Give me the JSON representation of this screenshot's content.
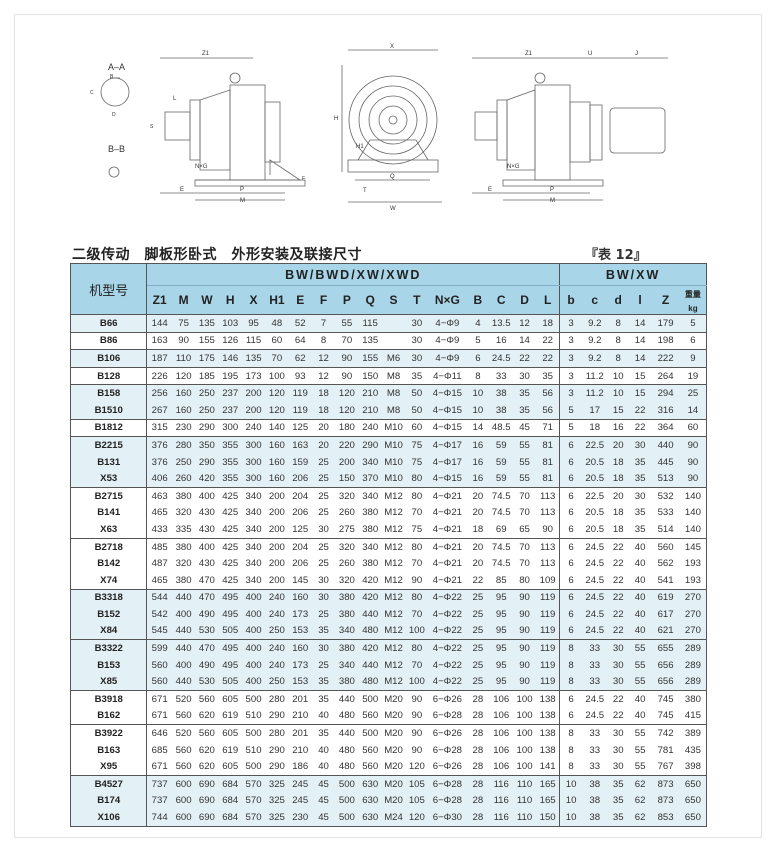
{
  "drawing_labels": {
    "aa": "A–A",
    "bb": "B–B",
    "z1": "Z1",
    "x": "X",
    "u": "U",
    "j": "J",
    "l": "L",
    "h": "H",
    "h1": "H1",
    "e": "E",
    "p": "P",
    "m": "M",
    "q": "Q",
    "t": "T",
    "w": "W",
    "nxg": "N×G",
    "f": "F",
    "s": "S",
    "c": "C",
    "d": "D",
    "b": "B"
  },
  "title": "二级传动　脚板形卧式　外形安装及联接尺寸",
  "table_no": "『表 12』",
  "table": {
    "model_header": "机型号",
    "group1": "BW/BWD/XW/XWD",
    "group2": "BW/XW",
    "columns": [
      "Z1",
      "M",
      "W",
      "H",
      "X",
      "H1",
      "E",
      "F",
      "P",
      "Q",
      "S",
      "T",
      "N×G",
      "B",
      "C",
      "D",
      "L",
      "b",
      "c",
      "d",
      "l",
      "Z"
    ],
    "weight_header": [
      "重量",
      "kg"
    ],
    "groups": [
      {
        "shade": true,
        "rows": [
          [
            "B66",
            "144",
            "75",
            "135",
            "103",
            "95",
            "48",
            "52",
            "7",
            "55",
            "115",
            "",
            "30",
            "4−Φ9",
            "4",
            "13.5",
            "12",
            "18",
            "3",
            "9.2",
            "8",
            "14",
            "179",
            "5"
          ]
        ]
      },
      {
        "shade": false,
        "rows": [
          [
            "B86",
            "163",
            "90",
            "155",
            "126",
            "115",
            "60",
            "64",
            "8",
            "70",
            "135",
            "",
            "30",
            "4−Φ9",
            "5",
            "16",
            "14",
            "22",
            "3",
            "9.2",
            "8",
            "14",
            "198",
            "6"
          ]
        ]
      },
      {
        "shade": true,
        "rows": [
          [
            "B106",
            "187",
            "110",
            "175",
            "146",
            "135",
            "70",
            "62",
            "12",
            "90",
            "155",
            "M6",
            "30",
            "4−Φ9",
            "6",
            "24.5",
            "22",
            "22",
            "3",
            "9.2",
            "8",
            "14",
            "222",
            "9"
          ]
        ]
      },
      {
        "shade": false,
        "rows": [
          [
            "B128",
            "226",
            "120",
            "185",
            "195",
            "173",
            "100",
            "93",
            "12",
            "90",
            "150",
            "M8",
            "35",
            "4−Φ11",
            "8",
            "33",
            "30",
            "35",
            "3",
            "11.2",
            "10",
            "15",
            "264",
            "19"
          ]
        ]
      },
      {
        "shade": true,
        "rows": [
          [
            "B158",
            "256",
            "160",
            "250",
            "237",
            "200",
            "120",
            "119",
            "18",
            "120",
            "210",
            "M8",
            "50",
            "4−Φ15",
            "10",
            "38",
            "35",
            "56",
            "3",
            "11.2",
            "10",
            "15",
            "294",
            "25"
          ],
          [
            "B1510",
            "267",
            "160",
            "250",
            "237",
            "200",
            "120",
            "119",
            "18",
            "120",
            "210",
            "M8",
            "50",
            "4−Φ15",
            "10",
            "38",
            "35",
            "56",
            "5",
            "17",
            "15",
            "22",
            "316",
            "14"
          ]
        ]
      },
      {
        "shade": false,
        "rows": [
          [
            "B1812",
            "315",
            "230",
            "290",
            "300",
            "240",
            "140",
            "125",
            "20",
            "180",
            "240",
            "M10",
            "60",
            "4−Φ15",
            "14",
            "48.5",
            "45",
            "71",
            "5",
            "18",
            "16",
            "22",
            "364",
            "60"
          ]
        ]
      },
      {
        "shade": true,
        "rows": [
          [
            "B2215",
            "376",
            "280",
            "350",
            "355",
            "300",
            "160",
            "163",
            "20",
            "220",
            "290",
            "M10",
            "75",
            "4−Φ17",
            "16",
            "59",
            "55",
            "81",
            "6",
            "22.5",
            "20",
            "30",
            "440",
            "90"
          ],
          [
            "B131",
            "376",
            "250",
            "290",
            "355",
            "300",
            "160",
            "159",
            "25",
            "200",
            "340",
            "M10",
            "75",
            "4−Φ17",
            "16",
            "59",
            "55",
            "81",
            "6",
            "20.5",
            "18",
            "35",
            "445",
            "90"
          ],
          [
            "X53",
            "406",
            "260",
            "420",
            "355",
            "300",
            "160",
            "206",
            "25",
            "150",
            "370",
            "M10",
            "80",
            "4−Φ15",
            "16",
            "59",
            "55",
            "81",
            "6",
            "20.5",
            "18",
            "35",
            "513",
            "90"
          ]
        ]
      },
      {
        "shade": false,
        "rows": [
          [
            "B2715",
            "463",
            "380",
            "400",
            "425",
            "340",
            "200",
            "204",
            "25",
            "320",
            "340",
            "M12",
            "80",
            "4−Φ21",
            "20",
            "74.5",
            "70",
            "113",
            "6",
            "22.5",
            "20",
            "30",
            "532",
            "140"
          ],
          [
            "B141",
            "465",
            "320",
            "430",
            "425",
            "340",
            "200",
            "206",
            "25",
            "260",
            "380",
            "M12",
            "70",
            "4−Φ21",
            "20",
            "74.5",
            "70",
            "113",
            "6",
            "20.5",
            "18",
            "35",
            "533",
            "140"
          ],
          [
            "X63",
            "433",
            "335",
            "430",
            "425",
            "340",
            "200",
            "125",
            "30",
            "275",
            "380",
            "M12",
            "75",
            "4−Φ21",
            "18",
            "69",
            "65",
            "90",
            "6",
            "20.5",
            "18",
            "35",
            "514",
            "140"
          ]
        ]
      },
      {
        "shade": false,
        "rows": [
          [
            "B2718",
            "485",
            "380",
            "400",
            "425",
            "340",
            "200",
            "204",
            "25",
            "320",
            "340",
            "M12",
            "80",
            "4−Φ21",
            "20",
            "74.5",
            "70",
            "113",
            "6",
            "24.5",
            "22",
            "40",
            "560",
            "145"
          ],
          [
            "B142",
            "487",
            "320",
            "430",
            "425",
            "340",
            "200",
            "206",
            "25",
            "260",
            "380",
            "M12",
            "70",
            "4−Φ21",
            "20",
            "74.5",
            "70",
            "113",
            "6",
            "24.5",
            "22",
            "40",
            "562",
            "193"
          ],
          [
            "X74",
            "465",
            "380",
            "470",
            "425",
            "340",
            "200",
            "145",
            "30",
            "320",
            "420",
            "M12",
            "90",
            "4−Φ21",
            "22",
            "85",
            "80",
            "109",
            "6",
            "24.5",
            "22",
            "40",
            "541",
            "193"
          ]
        ]
      },
      {
        "shade": true,
        "rows": [
          [
            "B3318",
            "544",
            "440",
            "470",
            "495",
            "400",
            "240",
            "160",
            "30",
            "380",
            "420",
            "M12",
            "80",
            "4−Φ22",
            "25",
            "95",
            "90",
            "119",
            "6",
            "24.5",
            "22",
            "40",
            "619",
            "270"
          ],
          [
            "B152",
            "542",
            "400",
            "490",
            "495",
            "400",
            "240",
            "173",
            "25",
            "380",
            "440",
            "M12",
            "70",
            "4−Φ22",
            "25",
            "95",
            "90",
            "119",
            "6",
            "24.5",
            "22",
            "40",
            "617",
            "270"
          ],
          [
            "X84",
            "545",
            "440",
            "530",
            "505",
            "400",
            "250",
            "153",
            "35",
            "340",
            "480",
            "M12",
            "100",
            "4−Φ22",
            "25",
            "95",
            "90",
            "119",
            "6",
            "24.5",
            "22",
            "40",
            "621",
            "270"
          ]
        ]
      },
      {
        "shade": true,
        "rows": [
          [
            "B3322",
            "599",
            "440",
            "470",
            "495",
            "400",
            "240",
            "160",
            "30",
            "380",
            "420",
            "M12",
            "80",
            "4−Φ22",
            "25",
            "95",
            "90",
            "119",
            "8",
            "33",
            "30",
            "55",
            "655",
            "289"
          ],
          [
            "B153",
            "560",
            "400",
            "490",
            "495",
            "400",
            "240",
            "173",
            "25",
            "340",
            "440",
            "M12",
            "70",
            "4−Φ22",
            "25",
            "95",
            "90",
            "119",
            "8",
            "33",
            "30",
            "55",
            "656",
            "289"
          ],
          [
            "X85",
            "560",
            "440",
            "530",
            "505",
            "400",
            "250",
            "153",
            "35",
            "380",
            "480",
            "M12",
            "100",
            "4−Φ22",
            "25",
            "95",
            "90",
            "119",
            "8",
            "33",
            "30",
            "55",
            "656",
            "289"
          ]
        ]
      },
      {
        "shade": false,
        "rows": [
          [
            "B3918",
            "671",
            "520",
            "560",
            "605",
            "500",
            "280",
            "201",
            "35",
            "440",
            "500",
            "M20",
            "90",
            "6−Φ26",
            "28",
            "106",
            "100",
            "138",
            "6",
            "24.5",
            "22",
            "40",
            "745",
            "380"
          ],
          [
            "B162",
            "671",
            "560",
            "620",
            "619",
            "510",
            "290",
            "210",
            "40",
            "480",
            "560",
            "M20",
            "90",
            "6−Φ28",
            "28",
            "106",
            "100",
            "138",
            "6",
            "24.5",
            "22",
            "40",
            "745",
            "415"
          ]
        ]
      },
      {
        "shade": false,
        "rows": [
          [
            "B3922",
            "646",
            "520",
            "560",
            "605",
            "500",
            "280",
            "201",
            "35",
            "440",
            "500",
            "M20",
            "90",
            "6−Φ26",
            "28",
            "106",
            "100",
            "138",
            "8",
            "33",
            "30",
            "55",
            "742",
            "389"
          ],
          [
            "B163",
            "685",
            "560",
            "620",
            "619",
            "510",
            "290",
            "210",
            "40",
            "480",
            "560",
            "M20",
            "90",
            "6−Φ28",
            "28",
            "106",
            "100",
            "138",
            "8",
            "33",
            "30",
            "55",
            "781",
            "435"
          ],
          [
            "X95",
            "671",
            "560",
            "620",
            "605",
            "500",
            "290",
            "186",
            "40",
            "480",
            "560",
            "M20",
            "120",
            "6−Φ26",
            "28",
            "106",
            "100",
            "141",
            "8",
            "33",
            "30",
            "55",
            "767",
            "398"
          ]
        ]
      },
      {
        "shade": true,
        "rows": [
          [
            "B4527",
            "737",
            "600",
            "690",
            "684",
            "570",
            "325",
            "245",
            "45",
            "500",
            "630",
            "M20",
            "105",
            "6−Φ28",
            "28",
            "116",
            "110",
            "165",
            "10",
            "38",
            "35",
            "62",
            "873",
            "650"
          ],
          [
            "B174",
            "737",
            "600",
            "690",
            "684",
            "570",
            "325",
            "245",
            "45",
            "500",
            "630",
            "M20",
            "105",
            "6−Φ28",
            "28",
            "116",
            "110",
            "165",
            "10",
            "38",
            "35",
            "62",
            "873",
            "650"
          ],
          [
            "X106",
            "744",
            "600",
            "690",
            "684",
            "570",
            "325",
            "230",
            "45",
            "500",
            "630",
            "M24",
            "120",
            "6−Φ30",
            "28",
            "116",
            "110",
            "150",
            "10",
            "38",
            "35",
            "62",
            "853",
            "650"
          ]
        ]
      }
    ]
  }
}
